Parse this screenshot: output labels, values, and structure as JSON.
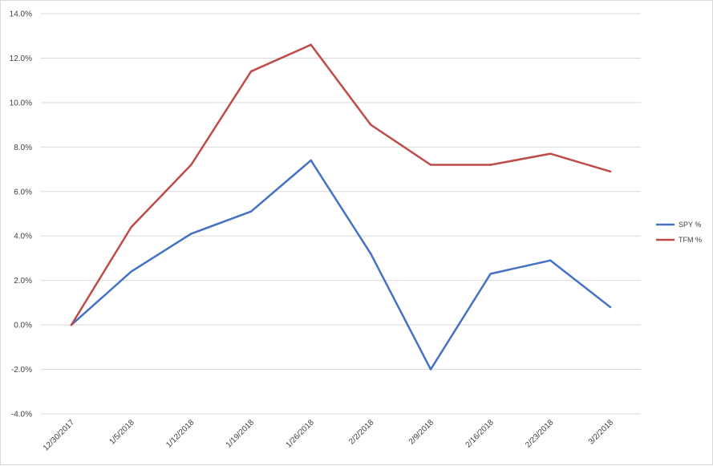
{
  "chart_data": {
    "type": "line",
    "title": "",
    "xlabel": "",
    "ylabel": "",
    "categories": [
      "12/30/2017",
      "1/5/2018",
      "1/12/2018",
      "1/19/2018",
      "1/26/2018",
      "2/2/2018",
      "2/9/2018",
      "2/16/2018",
      "2/23/2018",
      "3/2/2018"
    ],
    "ylim": [
      -4,
      14
    ],
    "y_ticks": [
      "14.0%",
      "12.0%",
      "10.0%",
      "8.0%",
      "6.0%",
      "4.0%",
      "2.0%",
      "0.0%",
      "-2.0%",
      "-4.0%"
    ],
    "y_tick_values": [
      14,
      12,
      10,
      8,
      6,
      4,
      2,
      0,
      -2,
      -4
    ],
    "grid": true,
    "legend_position": "right",
    "series": [
      {
        "name": "SPY %",
        "color": "#4472c4",
        "values": [
          0,
          2.4,
          4.1,
          5.1,
          7.4,
          3.2,
          -2.0,
          2.3,
          2.9,
          0.8
        ]
      },
      {
        "name": "TFM %",
        "color": "#be4b48",
        "values": [
          0,
          4.4,
          7.2,
          11.4,
          12.6,
          9.0,
          7.2,
          7.2,
          7.7,
          6.9
        ]
      }
    ]
  }
}
